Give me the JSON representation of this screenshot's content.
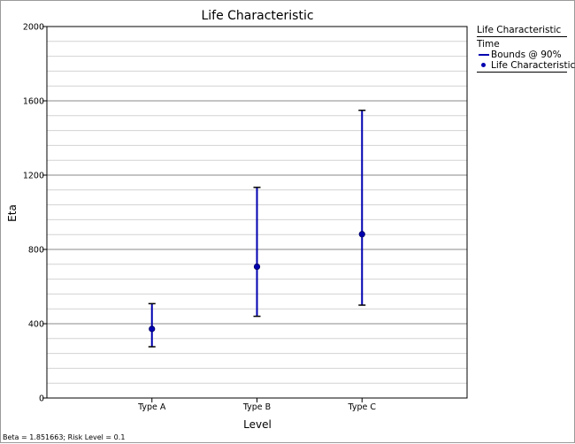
{
  "chart_data": {
    "type": "errorbar",
    "title": "Life Characteristic",
    "xlabel": "Level",
    "ylabel": "Eta",
    "categories": [
      "Type A",
      "Type B",
      "Type C"
    ],
    "ylim": [
      0,
      2000
    ],
    "yticks": [
      0,
      400,
      800,
      1200,
      1600,
      2000
    ],
    "y_minor_step": 80,
    "grid": true,
    "legend_position": "right",
    "series": [
      {
        "name": "Life Characteristic",
        "kind": "point",
        "values": [
          372,
          707,
          882
        ]
      },
      {
        "name": "Bounds @ 90%",
        "kind": "interval",
        "lower": [
          276,
          440,
          500
        ],
        "upper": [
          508,
          1134,
          1549
        ]
      }
    ],
    "colors": {
      "series": "#0000b0",
      "grid_major": "#8a8a8a",
      "grid_minor": "#d2d2d2"
    }
  },
  "legend": {
    "title": "Life Characteristic",
    "group": "Time",
    "items": [
      {
        "label": "Bounds @ 90%",
        "swatch": "line"
      },
      {
        "label": "Life Characteristic",
        "swatch": "dot"
      }
    ]
  },
  "footer": "Beta = 1.851663; Risk Level = 0.1"
}
